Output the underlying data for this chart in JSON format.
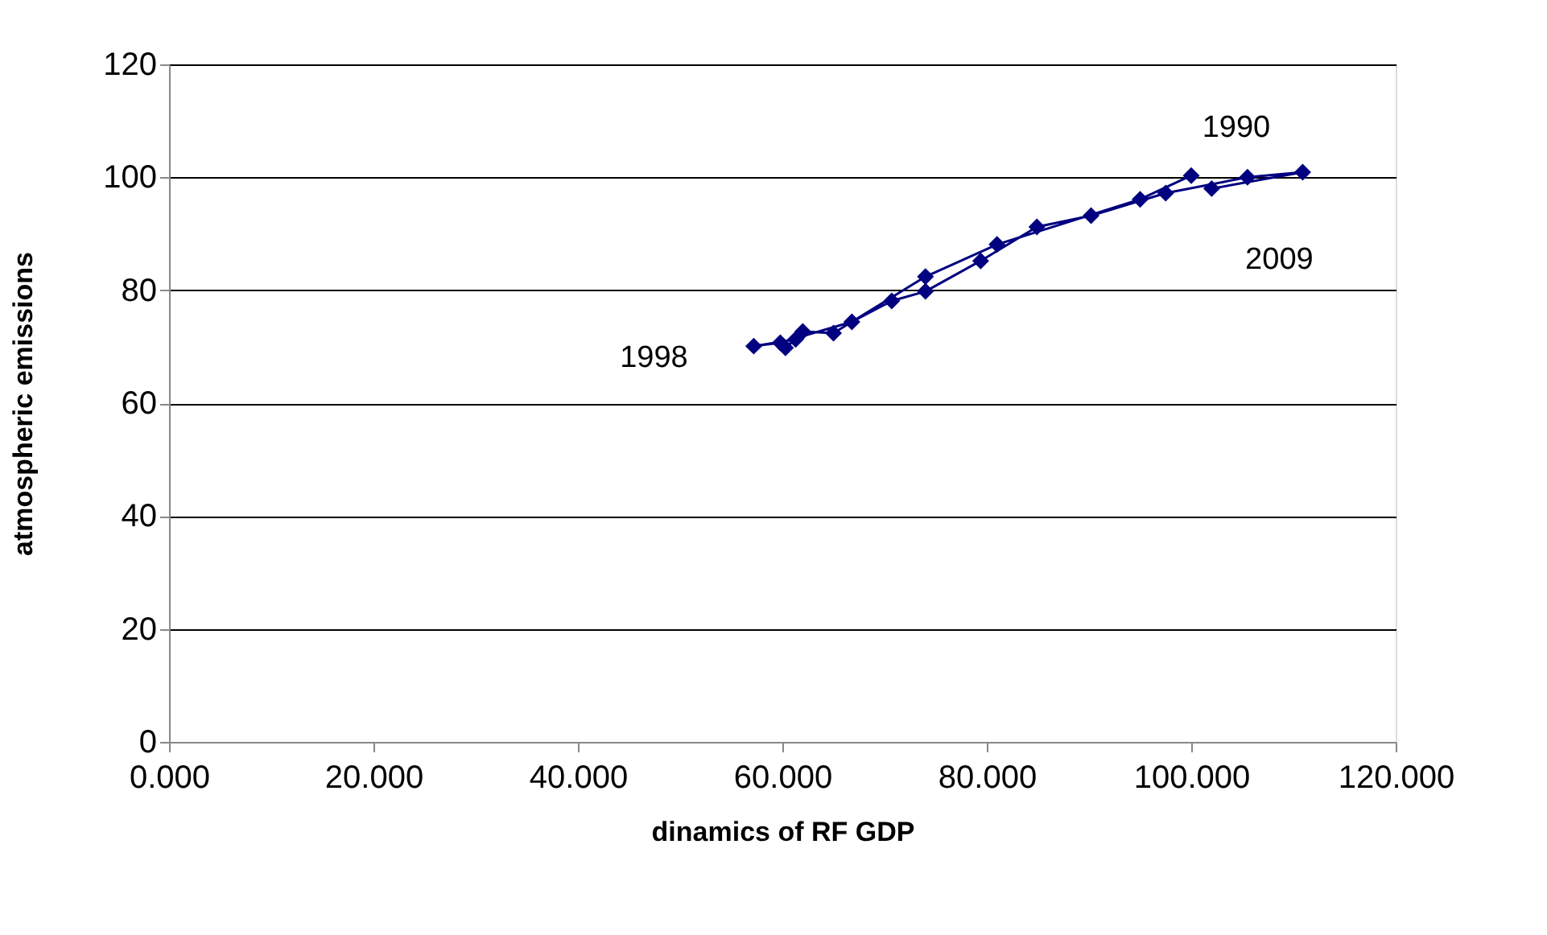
{
  "chart_data": {
    "type": "line",
    "xlabel": "dinamics of RF GDP",
    "ylabel": "atmospheric emissions",
    "x": [
      100,
      95,
      81,
      74,
      65,
      62,
      60.3,
      61.3,
      57.2,
      59.8,
      66.8,
      70.7,
      74,
      79.4,
      84.9,
      90.2,
      97.5,
      105.5,
      110.9,
      102
    ],
    "series": [
      {
        "color": "#000080",
        "values": [
          100.3,
          96.1,
          88.1,
          82.4,
          72.4,
          72.7,
          69.8,
          71.3,
          70.1,
          70.7,
          74.4,
          78.1,
          79.8,
          85.2,
          91.2,
          93.2,
          97.2,
          100,
          100.9,
          98
        ]
      }
    ],
    "xlim": [
      0,
      120
    ],
    "ylim": [
      0,
      120
    ],
    "xticks": [
      {
        "value": 0,
        "label": "0.000"
      },
      {
        "value": 20,
        "label": "20.000"
      },
      {
        "value": 40,
        "label": "40.000"
      },
      {
        "value": 60,
        "label": "60.000"
      },
      {
        "value": 80,
        "label": "80.000"
      },
      {
        "value": 100,
        "label": "100.000"
      },
      {
        "value": 120,
        "label": "120.000"
      }
    ],
    "yticks": [
      0,
      20,
      40,
      60,
      80,
      100,
      120
    ],
    "grid": "y",
    "marker": "diamond",
    "line_style": "solid",
    "annotations": [
      {
        "text": "1990",
        "x": 100,
        "y": 100.3
      },
      {
        "text": "1998",
        "x": 57.2,
        "y": 70.1
      },
      {
        "text": "2009",
        "x": 102,
        "y": 98
      }
    ]
  }
}
